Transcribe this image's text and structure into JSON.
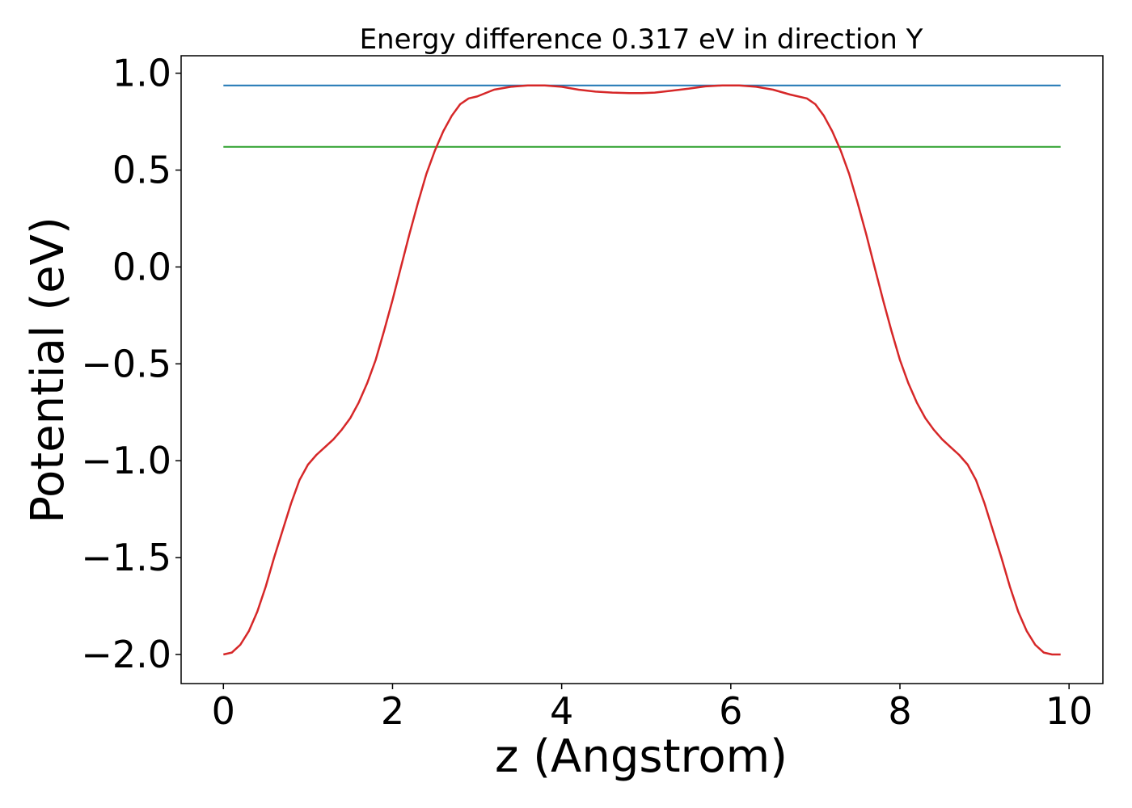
{
  "chart_data": {
    "type": "line",
    "title": "Energy difference 0.317 eV in direction Y",
    "xlabel": "z (Angstrom)",
    "ylabel": "Potential (eV)",
    "xlim": [
      -0.5,
      10.4
    ],
    "ylim": [
      -2.15,
      1.09
    ],
    "x_ticks": [
      0,
      2,
      4,
      6,
      8,
      10
    ],
    "x_tick_labels": [
      "0",
      "2",
      "4",
      "6",
      "8",
      "10"
    ],
    "y_ticks": [
      1.0,
      0.5,
      0.0,
      -0.5,
      -1.0,
      -1.5,
      -2.0
    ],
    "y_tick_labels": [
      "1.0",
      "0.5",
      "0.0",
      "−0.5",
      "−1.0",
      "−1.5",
      "−2.0"
    ],
    "grid": false,
    "legend": "none",
    "series": [
      {
        "color": "#1f77b4",
        "x": [
          0.0,
          9.9
        ],
        "y": [
          0.937,
          0.937
        ]
      },
      {
        "color": "#2ca02c",
        "x": [
          0.0,
          9.9
        ],
        "y": [
          0.62,
          0.62
        ]
      },
      {
        "color": "#d62728",
        "x": [
          0.0,
          0.1,
          0.2,
          0.3,
          0.4,
          0.5,
          0.6,
          0.7,
          0.8,
          0.9,
          1.0,
          1.1,
          1.2,
          1.3,
          1.4,
          1.5,
          1.6,
          1.7,
          1.8,
          1.9,
          2.0,
          2.1,
          2.2,
          2.3,
          2.4,
          2.5,
          2.6,
          2.7,
          2.8,
          2.9,
          3.0,
          3.2,
          3.4,
          3.6,
          3.8,
          4.0,
          4.2,
          4.4,
          4.6,
          4.8,
          4.95,
          5.1,
          5.3,
          5.5,
          5.7,
          5.9,
          6.1,
          6.3,
          6.5,
          6.7,
          6.9,
          7.0,
          7.1,
          7.2,
          7.3,
          7.4,
          7.5,
          7.6,
          7.7,
          7.8,
          7.9,
          8.0,
          8.1,
          8.2,
          8.3,
          8.4,
          8.5,
          8.6,
          8.7,
          8.8,
          8.9,
          9.0,
          9.1,
          9.2,
          9.3,
          9.4,
          9.5,
          9.6,
          9.7,
          9.8,
          9.9
        ],
        "y": [
          -2.0,
          -1.99,
          -1.95,
          -1.88,
          -1.78,
          -1.65,
          -1.5,
          -1.36,
          -1.22,
          -1.1,
          -1.02,
          -0.97,
          -0.93,
          -0.89,
          -0.84,
          -0.78,
          -0.7,
          -0.6,
          -0.48,
          -0.33,
          -0.17,
          0.0,
          0.17,
          0.33,
          0.48,
          0.6,
          0.7,
          0.78,
          0.84,
          0.87,
          0.88,
          0.915,
          0.93,
          0.937,
          0.937,
          0.93,
          0.915,
          0.905,
          0.9,
          0.897,
          0.897,
          0.9,
          0.91,
          0.92,
          0.932,
          0.937,
          0.937,
          0.93,
          0.915,
          0.89,
          0.87,
          0.84,
          0.78,
          0.7,
          0.6,
          0.48,
          0.33,
          0.17,
          0.0,
          -0.17,
          -0.33,
          -0.48,
          -0.6,
          -0.7,
          -0.78,
          -0.84,
          -0.89,
          -0.93,
          -0.97,
          -1.02,
          -1.1,
          -1.22,
          -1.36,
          -1.5,
          -1.65,
          -1.78,
          -1.88,
          -1.95,
          -1.99,
          -2.0,
          -2.0
        ]
      }
    ]
  }
}
